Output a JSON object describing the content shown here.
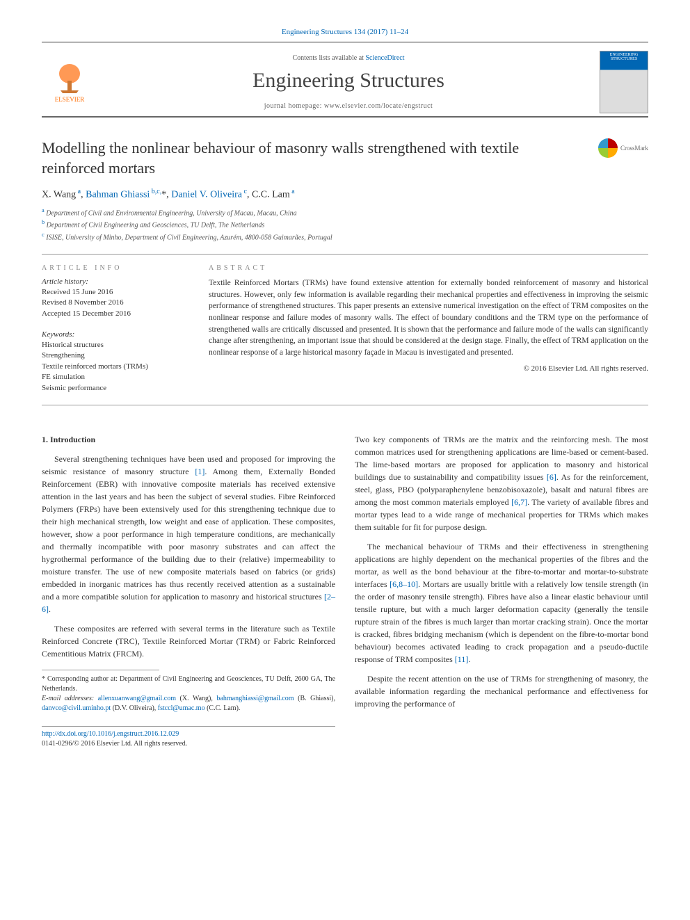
{
  "journal_ref": "Engineering Structures 134 (2017) 11–24",
  "header": {
    "contents_prefix": "Contents lists available at ",
    "contents_link": "ScienceDirect",
    "journal_name": "Engineering Structures",
    "homepage_prefix": "journal homepage: ",
    "homepage_url": "www.elsevier.com/locate/engstruct",
    "elsevier_label": "ELSEVIER",
    "cover_title": "ENGINEERING STRUCTURES"
  },
  "article": {
    "title": "Modelling the nonlinear behaviour of masonry walls strengthened with textile reinforced mortars",
    "crossmark_label": "CrossMark"
  },
  "authors_html": "X. Wang <sup>a</sup>, Bahman Ghiassi <sup>b,c,*</sup>, Daniel V. Oliveira <sup>c</sup>, C.C. Lam <sup>a</sup>",
  "affiliations": [
    {
      "sup": "a",
      "text": "Department of Civil and Environmental Engineering, University of Macau, Macau, China"
    },
    {
      "sup": "b",
      "text": "Department of Civil Engineering and Geosciences, TU Delft, The Netherlands"
    },
    {
      "sup": "c",
      "text": "ISISE, University of Minho, Department of Civil Engineering, Azurém, 4800-058 Guimarães, Portugal"
    }
  ],
  "meta": {
    "info_heading": "ARTICLE INFO",
    "abstract_heading": "ABSTRACT",
    "history_label": "Article history:",
    "history": [
      "Received 15 June 2016",
      "Revised 8 November 2016",
      "Accepted 15 December 2016"
    ],
    "keywords_label": "Keywords:",
    "keywords": [
      "Historical structures",
      "Strengthening",
      "Textile reinforced mortars (TRMs)",
      "FE simulation",
      "Seismic performance"
    ],
    "abstract": "Textile Reinforced Mortars (TRMs) have found extensive attention for externally bonded reinforcement of masonry and historical structures. However, only few information is available regarding their mechanical properties and effectiveness in improving the seismic performance of strengthened structures. This paper presents an extensive numerical investigation on the effect of TRM composites on the nonlinear response and failure modes of masonry walls. The effect of boundary conditions and the TRM type on the performance of strengthened walls are critically discussed and presented. It is shown that the performance and failure mode of the walls can significantly change after strengthening, an important issue that should be considered at the design stage. Finally, the effect of TRM application on the nonlinear response of a large historical masonry façade in Macau is investigated and presented.",
    "copyright": "© 2016 Elsevier Ltd. All rights reserved."
  },
  "body": {
    "section_heading": "1. Introduction",
    "p1": "Several strengthening techniques have been used and proposed for improving the seismic resistance of masonry structure [1]. Among them, Externally Bonded Reinforcement (EBR) with innovative composite materials has received extensive attention in the last years and has been the subject of several studies. Fibre Reinforced Polymers (FRPs) have been extensively used for this strengthening technique due to their high mechanical strength, low weight and ease of application. These composites, however, show a poor performance in high temperature conditions, are mechanically and thermally incompatible with poor masonry substrates and can affect the hygrothermal performance of the building due to their (relative) impermeability to moisture transfer. The use of new composite materials based on fabrics (or grids) embedded in inorganic matrices has thus recently received attention as a sustainable and a more compatible solution for application to masonry and historical structures [2–6].",
    "p2": "These composites are referred with several terms in the literature such as Textile Reinforced Concrete (TRC), Textile Reinforced Mortar (TRM) or Fabric Reinforced Cementitious Matrix (FRCM).",
    "p3": "Two key components of TRMs are the matrix and the reinforcing mesh. The most common matrices used for strengthening applications are lime-based or cement-based. The lime-based mortars are proposed for application to masonry and historical buildings due to sustainability and compatibility issues [6]. As for the reinforcement, steel, glass, PBO (polyparaphenylene benzobisoxazole), basalt and natural fibres are among the most common materials employed [6,7]. The variety of available fibres and mortar types lead to a wide range of mechanical properties for TRMs which makes them suitable for fit for purpose design.",
    "p4": "The mechanical behaviour of TRMs and their effectiveness in strengthening applications are highly dependent on the mechanical properties of the fibres and the mortar, as well as the bond behaviour at the fibre-to-mortar and mortar-to-substrate interfaces [6,8–10]. Mortars are usually brittle with a relatively low tensile strength (in the order of masonry tensile strength). Fibres have also a linear elastic behaviour until tensile rupture, but with a much larger deformation capacity (generally the tensile rupture strain of the fibres is much larger than mortar cracking strain). Once the mortar is cracked, fibres bridging mechanism (which is dependent on the fibre-to-mortar bond behaviour) becomes activated leading to crack propagation and a pseudo-ductile response of TRM composites [11].",
    "p5": "Despite the recent attention on the use of TRMs for strengthening of masonry, the available information regarding the mechanical performance and effectiveness for improving the performance of"
  },
  "footnote": {
    "corr": "* Corresponding author at: Department of Civil Engineering and Geosciences, TU Delft, 2600 GA, The Netherlands.",
    "emails_label": "E-mail addresses: ",
    "emails": [
      {
        "addr": "allenxuanwang@gmail.com",
        "who": "(X. Wang)"
      },
      {
        "addr": "bahmanghiassi@gmail.com",
        "who": "(B. Ghiassi)"
      },
      {
        "addr": "danvco@civil.uminho.pt",
        "who": "(D.V. Oliveira)"
      },
      {
        "addr": "fstccl@umac.mo",
        "who": "(C.C. Lam)"
      }
    ]
  },
  "doi": {
    "url": "http://dx.doi.org/10.1016/j.engstruct.2016.12.029",
    "issn_line": "0141-0296/© 2016 Elsevier Ltd. All rights reserved."
  },
  "refs": {
    "r1": "[1]",
    "r2_6": "[2–6]",
    "r6": "[6]",
    "r6_7": "[6,7]",
    "r6_8_10": "[6,8–10]",
    "r11": "[11]"
  },
  "colors": {
    "link": "#0066b3",
    "elsevier_orange": "#ff6b00",
    "text": "#333333",
    "muted": "#666666",
    "rule": "#999999"
  }
}
